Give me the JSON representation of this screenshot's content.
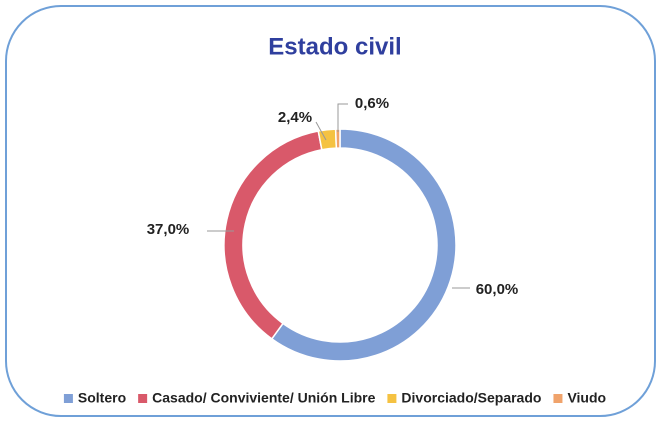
{
  "chart_data": {
    "type": "donut",
    "title": "Estado civil",
    "categories": [
      "Soltero",
      "Casado/ Conviviente/ Unión Libre",
      "Divorciado/Separado",
      "Viudo"
    ],
    "values": [
      60.0,
      37.0,
      2.4,
      0.6
    ],
    "value_labels": [
      "60,0%",
      "37,0%",
      "2,4%",
      "0,6%"
    ],
    "colors": [
      "#7f9fd6",
      "#d9596a",
      "#f5c242",
      "#f0a36b"
    ],
    "legend": "bottom"
  }
}
